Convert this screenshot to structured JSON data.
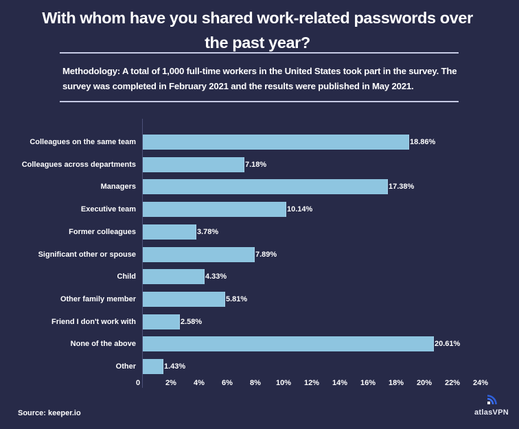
{
  "header": {
    "title_line1": "With whom have you shared work-related passwords over",
    "title_line2": "the past year?",
    "methodology": "Methodology: A total of 1,000 full-time workers in the United States took part in the survey. The survey was completed in February 2021 and the results were published in May 2021."
  },
  "footer": {
    "source": "Source: keeper.io",
    "logo_text": "atlasVPN",
    "logo_icon": "wifi-signal-icon"
  },
  "colors": {
    "background": "#272a48",
    "bar": "#8ec5e0",
    "text": "#ffffff",
    "logo_accent": "#3a6ff0"
  },
  "chart_data": {
    "type": "bar",
    "orientation": "horizontal",
    "title": "With whom have you shared work-related passwords over the past year?",
    "xlabel": "",
    "ylabel": "",
    "xlim": [
      0,
      24
    ],
    "grid": false,
    "legend": null,
    "categories": [
      "Colleagues on the same team",
      "Colleagues across departments",
      "Managers",
      "Executive team",
      "Former colleagues",
      "Significant other or spouse",
      "Child",
      "Other family member",
      "Friend I don't work with",
      "None of the above",
      "Other"
    ],
    "values": [
      18.86,
      7.18,
      17.38,
      10.14,
      3.78,
      7.89,
      4.33,
      5.81,
      2.58,
      20.61,
      1.43
    ],
    "value_labels": [
      "18.86%",
      "7.18%",
      "17.38%",
      "10.14%",
      "3.78%",
      "7.89%",
      "4.33%",
      "5.81%",
      "2.58%",
      "20.61%",
      "1.43%"
    ],
    "x_tick_labels": [
      "0",
      "2%",
      "4%",
      "6%",
      "8%",
      "10%",
      "12%",
      "14%",
      "16%",
      "18%",
      "20%",
      "22%",
      "24%"
    ],
    "x_ticks": [
      0,
      2,
      4,
      6,
      8,
      10,
      12,
      14,
      16,
      18,
      20,
      22,
      24
    ]
  }
}
